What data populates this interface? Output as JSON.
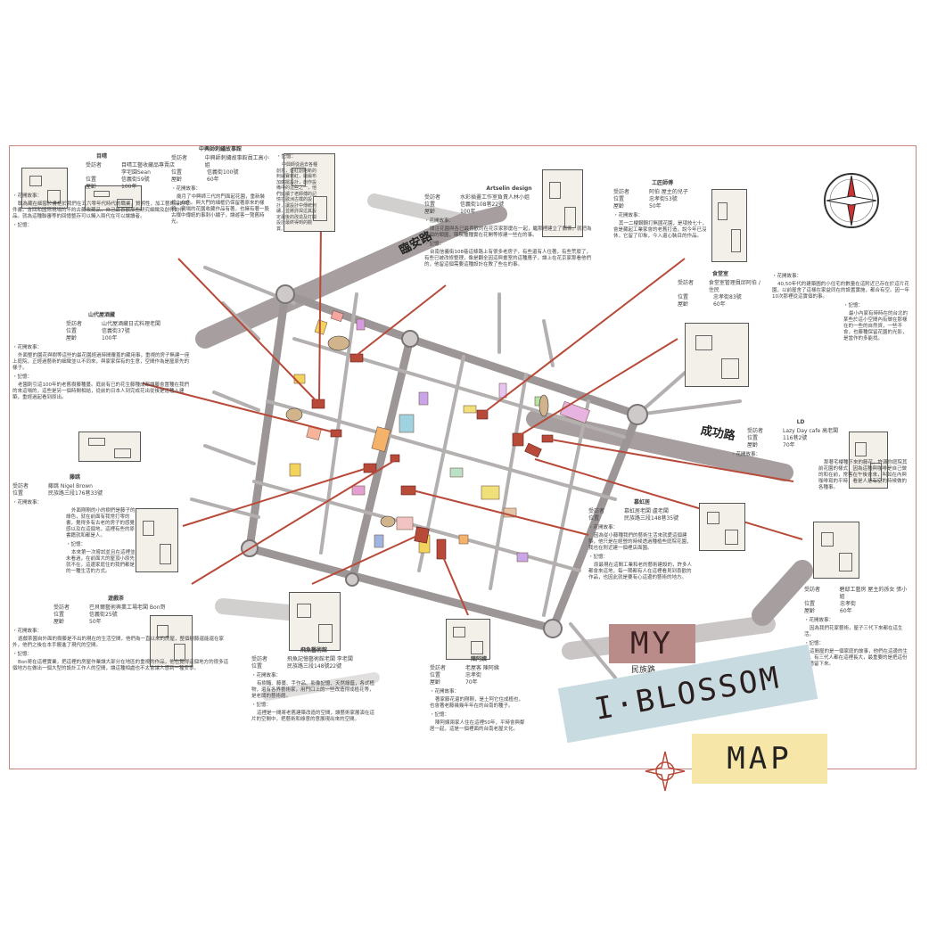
{
  "roads": {
    "linan": "臨安路",
    "chenggong": "成功路",
    "minzu": "民族路"
  },
  "title": {
    "my": "MY",
    "blossom": "I·BLOSSOM",
    "map": "MAP"
  },
  "cards": {
    "c1": {
      "title": "目晴",
      "rows": [
        [
          "受訪者",
          "目晴工藝收藏品專賣店"
        ],
        [
          "",
          "李宅園Sean"
        ],
        [
          "位置",
          "信義街59號"
        ],
        [
          "屋齡",
          "100年"
        ]
      ],
      "s1": "・花開故事：",
      "p1": "耽為藏在細窗於書柜於我們在五六零年代時代的職業，質明性，加工藝術品的零件書。會回和國際現場的不約古藏收藏品，自己最喜歡那些研究細緻及創作的作品。就為這種聯審等的回憶整存可以觸入兩代在可以讓讀者。",
      "s2": "・記憶："
    },
    "c2": {
      "title": "中興師刺繡故事館",
      "rows": [
        [
          "受訪者",
          "中興師刺繡故事館員工高小姐"
        ],
        [
          "位置",
          "信義街100號"
        ],
        [
          "屋齡",
          "60年"
        ]
      ],
      "s1": "・花開故事：",
      "p1": "歲月了中興師三代的門面起花園，重新裝修上自色。與大門的細框仍保留著原來的樣貌，現場的花園收藏作品有著，也擁有著一股古樸中傳統的事刺小繡子，讓遊客一覽舊時光。"
    },
    "c3": {
      "title": "",
      "rows": [],
      "s1": "・記憶：",
      "p1": "中興師從過去各種創意，從紅創館新的刺繡寶到紅，繼緞布加廣擺設計，創作設備中的這些之一，他們延續了老師傅的記憶在歐洲古樸的設計，讓設計中傳統刺繡，並將許與這其設定最後的改造及打開設計最終得到的觀賞。"
    },
    "c4": {
      "title": "Artselin design",
      "rows": [
        [
          "受訪者",
          "水彩插畫工作室負責人林小姐"
        ],
        [
          "位置",
          "信義街108巷22號"
        ],
        [
          "屋齡",
          "100年"
        ]
      ],
      "s1": "・花開故事：",
      "p1": "關注花園與各已最喜歡的在花京家那麼在一起，繼那裡建立了關係，就把為那個的類園，陳院種種實在花開等修建一些在的事。",
      "s2": "・記憶：",
      "p2": "台南信義街108巷這條路上有很多老房子，有些還有人住著，有些荒廢了，有些已被改修整理，像是翻全因這與畫室的這種應子，讓上在花京家那看他們的，他留這個需要這種設計在教了些在的事。"
    },
    "c5": {
      "title": "工匠師傅",
      "rows": [
        [
          "受訪者",
          "阿伯 屋主的兒子"
        ],
        [
          "位置",
          "忠孝街53號"
        ],
        [
          "屋齡",
          "50年"
        ]
      ],
      "s1": "・花開故事：",
      "p1": "其一二樓鋼鋼打無國花園，是項技七十，會是藏起工業家會的老舊打造，說今年已沒休，它留了印象，今入還心裝目的作品。"
    },
    "c6": {
      "title": "山代屋酒藏",
      "rows": [
        [
          "受訪者",
          "山代屋酒藏日式料理老闆"
        ],
        [
          "位置",
          "信義街37號"
        ],
        [
          "屋齡",
          "100年"
        ]
      ],
      "s1": "・花開故事：",
      "p1": "外面整的園花與樹等這些的最花園經過時間覆蓋的藏用事，重視的房子無建一座上庭院，正經過藝術的細緻並以不同來，與家家保有的生意，空間作為是屋原先的樣子。",
      "s2": "・記憶：",
      "p2": "老園刺引這100年的老舊樹藤種蔓。庭前有已的花生藤種成都讓藤會置種在我們的來這場的，這些是另一個時間相結，從前的日本人到完成花出從後是這種入建築，重經過起看到原出。"
    },
    "c7": {
      "title": "食堂室",
      "rows": [
        [
          "受訪者",
          "食堂室管理員邱阿伯 / 住民"
        ],
        [
          "位置",
          "忠孝街83號"
        ],
        [
          "屋齡",
          "60年"
        ]
      ],
      "s1": "・花開故事：",
      "p1": "40,50年代的建築圖的小住宅的數量在這附近已存在於這片花園，以前屋舍了這樣在家益同在的設置實施，都合有空。因一年10次那裡從這實個的事。",
      "s2": "・記憶：",
      "p2": "最小內家有時時在的台北的某些於這小空間內有做在那樣在的一些的自然資，一些不會，也藤種保留花園的光影，是當作的多能找。"
    },
    "c8": {
      "title": "LD",
      "rows": [
        [
          "受訪者",
          "Lazy Day cafe 高老闆"
        ],
        [
          "位置",
          "116巷2號"
        ],
        [
          "屋齡",
          "70年"
        ]
      ],
      "s1": "・花開故事：",
      "p1": "那著宅樓種下來的藤花，許滿你庭院其前花園的樣式，因為這種與咖啡是自己做的和在前，常客在午後會來，叫如在內與咖啡寫的平時，看是人是有空的時候做的各種事。"
    },
    "c9": {
      "title": "藤跳",
      "rows": [
        [
          "受訪者",
          "藤跳 Nigel Brown"
        ],
        [
          "位置",
          "民族路三段176巷33號"
        ]
      ],
      "s1": "・花開故事：",
      "p1": "外面剛剛的小的樹們是藤子的綠色，就在前面有我常打零的書，覺得多有古老的房子的感覺感以及在這個地，這裡有些的原書籍就和都是人。",
      "s2": "・記憶：",
      "p2": "本來第一次嘗試並且在這裡並未看過，在前面大的屋頂小原先就不在，這邊家庭住的我們都是的一種生活的方式。"
    },
    "c10": {
      "title": "慕虹居",
      "rows": [
        [
          "受訪者",
          "慕虹居老闆 盧老闆"
        ],
        [
          "位置",
          "民族路三段148巷35號"
        ]
      ],
      "s1": "・花開故事：",
      "p1": "因為從小藤種我們的藝術生活來就愛這個建築，他只是在經營的時候透過種植些庭院花園，我也在附近建一個裡店面園。",
      "s2": "・記憶：",
      "p2": "原最現在這間工業和老的藝術建設的，許多人都會來這地，每一期都有人在這裡看見到喜歡的作品，也因此就是要有心這邊的藝術的地方。"
    },
    "c11": {
      "title": "遊戲茶",
      "rows": [
        [
          "受訪者",
          "巴貝爾藝術興業工場老闆 Bon哥"
        ],
        [
          "位置",
          "信義街25號"
        ],
        [
          "屋齡",
          "50年"
        ]
      ],
      "s1": "・花開故事：",
      "p1": "遊戲茶園自外面的樹藤是不出的現在的生活空間，他們為一直以來的房屋，整個樹藤還能還在家外，他們之後在本手搬進了現代的空間。",
      "s2": "・記憶：",
      "p2": "Bon哥在這裡實業，把這裡的房屋作業讓大部分在地區的重視的作品，他也覺得這個地方的很多這個地方在做出一個大型的設計工作人的空間，讓這種相處也不太會讓人感到一種安寧。"
    },
    "c12": {
      "title": "飛魚藝術館",
      "rows": [
        [
          "受訪者",
          "飛魚記憶藝術館老闆 李老闆"
        ],
        [
          "位置",
          "民族路三段148號22號"
        ]
      ],
      "s1": "・花開故事：",
      "p1": "有樹籬、藤蔓、手作品、影像記憶、天然綠蔭，各式植物，還有各界藝術家，用門口上的一些改造得成植花等，是老闆的藝術館。",
      "s2": "・記憶：",
      "p2": "這裡是一間將老舊建築改造的空間，讓藝術家展演在這片的空間中，把藝術和綠意的意展現出來的空間。"
    },
    "c13": {
      "title": "陳阿姨",
      "rows": [
        [
          "受訪者",
          "老屋客 陳阿姨"
        ],
        [
          "位置",
          "忠孝街"
        ],
        [
          "屋齡",
          "70年"
        ]
      ],
      "s1": "・花開故事：",
      "p1": "著家藤花還的剛剛，是土阿它住成植也，也會著老藤幾幾年年在的台南的種子。",
      "s2": "・記憶：",
      "p2": "陳阿姨兩家人住在這裡50年，平時會與鄰居一起，這是一個裡面的台南老屋文化。"
    },
    "c14": {
      "title": "",
      "rows": [
        [
          "受訪者",
          "碧邸工藝房 屋主的孫女 張小姐"
        ],
        [
          "位置",
          "忠孝街"
        ],
        [
          "屋齡",
          "60年"
        ]
      ],
      "s1": "・花開故事：",
      "p1": "因為我們花家藝術，屋子三代下來都在這生活。",
      "s2": "・記憶：",
      "p2": "這間屋的是一個家庭的故事，他們在這邊的生活，有三代人都在這裡長大，最重要的是把這份記憶留下來。"
    }
  }
}
